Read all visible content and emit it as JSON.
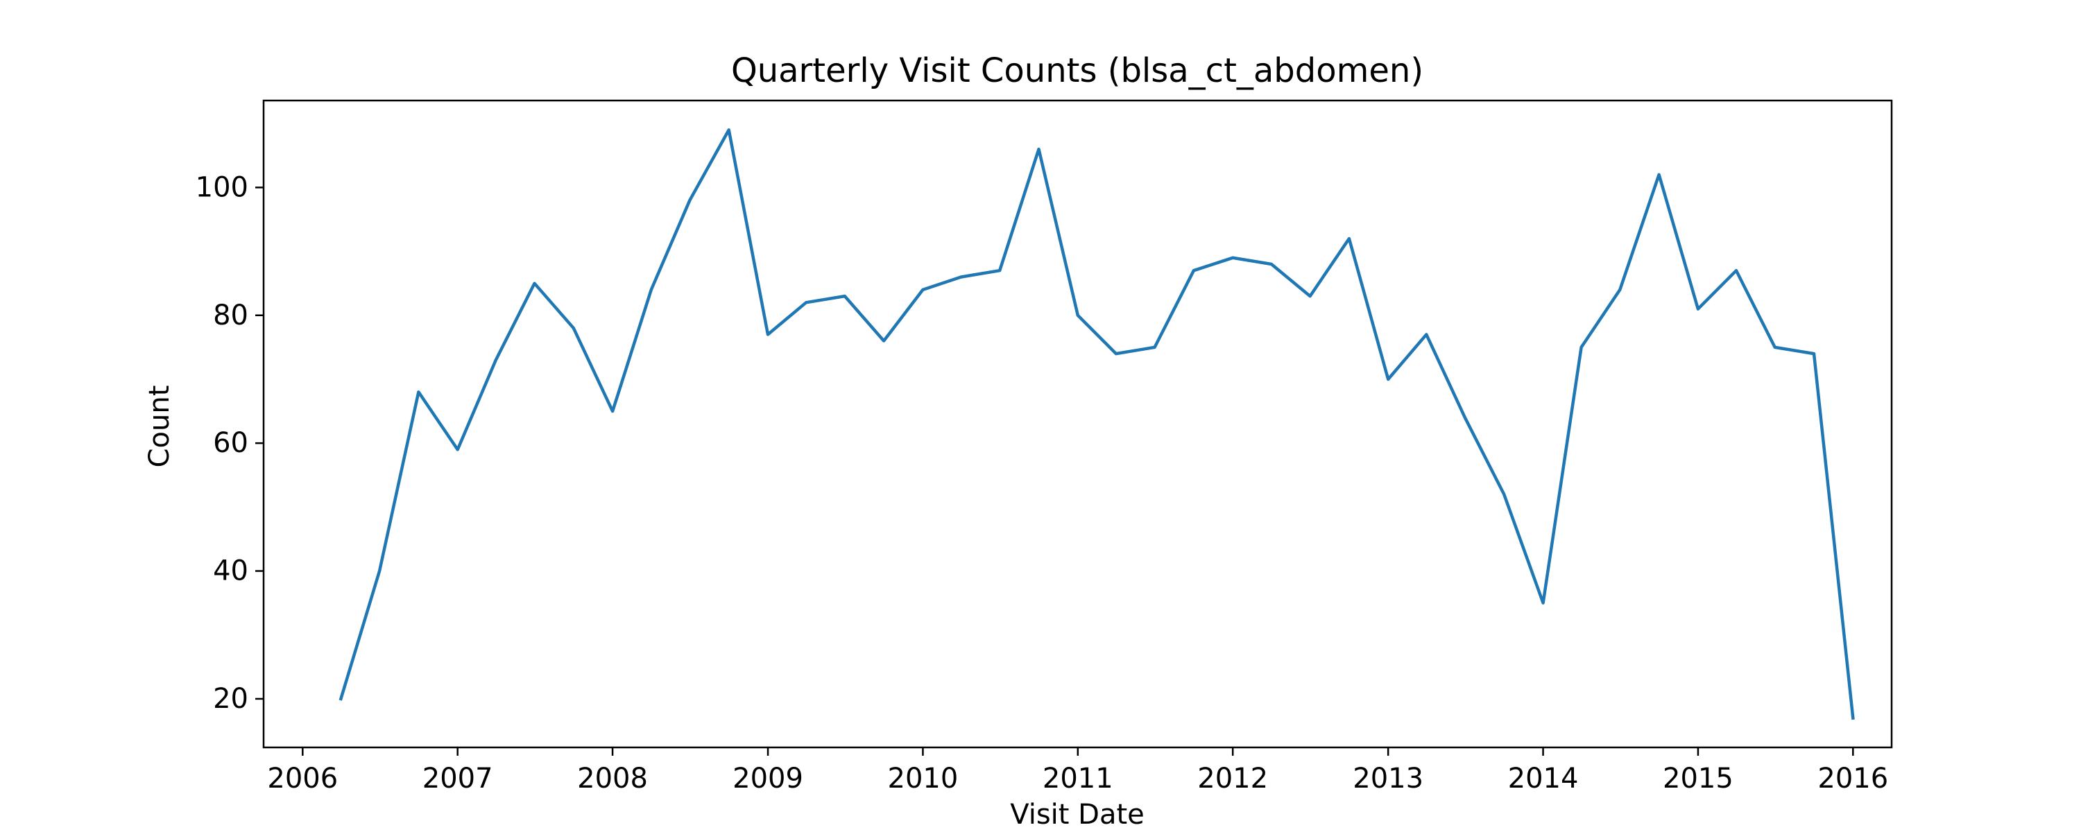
{
  "chart_data": {
    "type": "line",
    "title": "Quarterly Visit Counts (blsa_ct_abdomen)",
    "xlabel": "Visit Date",
    "ylabel": "Count",
    "x_ticks": [
      "2006",
      "2007",
      "2008",
      "2009",
      "2010",
      "2011",
      "2012",
      "2013",
      "2014",
      "2015",
      "2016"
    ],
    "y_ticks": [
      "20",
      "40",
      "60",
      "80",
      "100"
    ],
    "xlim": [
      "2005-10-01",
      "2016-04-01"
    ],
    "ylim": [
      12.4,
      113.6
    ],
    "grid": false,
    "legend": "none",
    "line_color": "#1f77b4",
    "series": [
      {
        "x": [
          "2006-04-01",
          "2006-07-01",
          "2006-10-01",
          "2007-01-01",
          "2007-04-01",
          "2007-07-01",
          "2007-10-01",
          "2008-01-01",
          "2008-04-01",
          "2008-07-01",
          "2008-10-01",
          "2009-01-01",
          "2009-04-01",
          "2009-07-01",
          "2009-10-01",
          "2010-01-01",
          "2010-04-01",
          "2010-07-01",
          "2010-10-01",
          "2011-01-01",
          "2011-04-01",
          "2011-07-01",
          "2011-10-01",
          "2012-01-01",
          "2012-04-01",
          "2012-07-01",
          "2012-10-01",
          "2013-01-01",
          "2013-04-01",
          "2013-07-01",
          "2013-10-01",
          "2014-01-01",
          "2014-04-01",
          "2014-07-01",
          "2014-10-01",
          "2015-01-01",
          "2015-04-01",
          "2015-07-01",
          "2015-10-01",
          "2016-01-01"
        ],
        "values": [
          20,
          40,
          68,
          59,
          73,
          85,
          78,
          65,
          84,
          98,
          109,
          77,
          82,
          83,
          76,
          84,
          86,
          87,
          106,
          80,
          74,
          75,
          87,
          89,
          88,
          83,
          92,
          70,
          77,
          64,
          52,
          35,
          75,
          84,
          102,
          81,
          87,
          75,
          74,
          17
        ]
      }
    ]
  }
}
